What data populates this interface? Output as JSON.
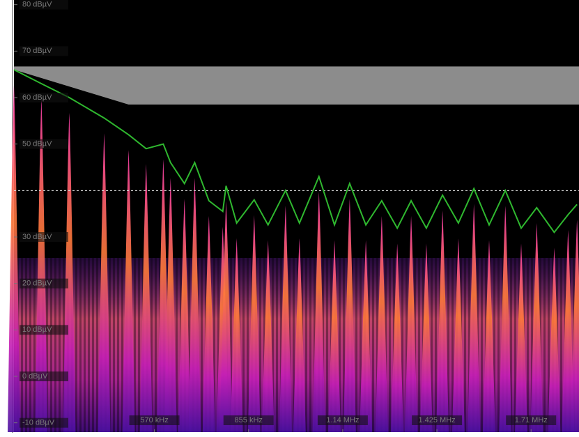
{
  "chart_data": {
    "type": "line",
    "x": [
      145,
      228,
      312.5,
      418,
      492,
      545,
      597,
      619,
      661,
      692,
      735,
      777,
      787,
      819,
      872,
      914,
      967,
      1009,
      1068,
      1115,
      1161,
      1210,
      1258,
      1305,
      1347,
      1393,
      1442,
      1490,
      1537,
      1583,
      1632,
      1680,
      1727,
      1780,
      1822,
      1849
    ],
    "series": [
      {
        "color": "#2fb82f",
        "values": [
          66,
          63,
          60,
          55.6,
          52,
          49,
          50,
          46,
          41.5,
          46,
          37.8,
          35.5,
          41,
          33,
          38,
          32.6,
          40,
          33,
          43,
          32.6,
          41.5,
          32.6,
          37.8,
          31.9,
          37.8,
          31.9,
          39,
          33,
          40.4,
          32.6,
          40,
          31.9,
          36.3,
          31,
          34.8,
          37
        ]
      }
    ],
    "mask": {
      "color": "#8c8c8c",
      "x": [
        145,
        492,
        1855
      ],
      "upper": [
        66.7,
        66.7,
        66.7
      ],
      "lower": [
        66,
        58.5,
        58.5
      ]
    },
    "threshold": 40,
    "xlim": [
      145,
      1855
    ],
    "ylim": [
      -12,
      81
    ],
    "xticks": [
      {
        "value": 570,
        "label": "570 kHz"
      },
      {
        "value": 855,
        "label": "855 kHz"
      },
      {
        "value": 1140,
        "label": "1.14 MHz"
      },
      {
        "value": 1425,
        "label": "1.425 MHz"
      },
      {
        "value": 1710,
        "label": "1.71 MHz"
      }
    ],
    "yticks": [
      {
        "value": 80,
        "label": "80 dBµV"
      },
      {
        "value": 70,
        "label": "70 dBµV"
      },
      {
        "value": 60,
        "label": "60 dBµV"
      },
      {
        "value": 50,
        "label": "50 dBµV"
      },
      {
        "value": 30,
        "label": "30 dBµV"
      },
      {
        "value": 20,
        "label": "20 dBµV"
      },
      {
        "value": 10,
        "label": "10 dBµV"
      },
      {
        "value": 0,
        "label": "0 dBµV"
      },
      {
        "value": -10,
        "label": "-10 dBµV"
      }
    ]
  }
}
